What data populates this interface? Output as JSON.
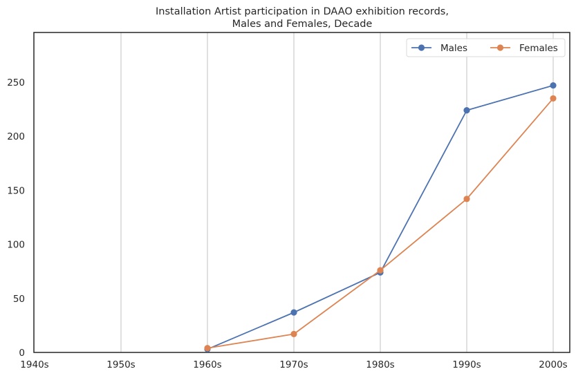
{
  "chart_data": {
    "type": "line",
    "title_lines": [
      "Installation Artist participation in DAAO exhibition records,",
      "Males and Females, Decade"
    ],
    "xlabel": "",
    "ylabel": "",
    "categories": [
      "1940s",
      "1950s",
      "1960s",
      "1970s",
      "1980s",
      "1990s",
      "2000s"
    ],
    "y_ticks": [
      0,
      50,
      100,
      150,
      200,
      250
    ],
    "ylim": [
      0,
      296
    ],
    "grid": "vertical",
    "legend_position": "top-right",
    "series": [
      {
        "name": "Males",
        "color": "#4c72b0",
        "x": [
          "1960s",
          "1970s",
          "1980s",
          "1990s",
          "2000s"
        ],
        "values": [
          3,
          37,
          74,
          224,
          247
        ]
      },
      {
        "name": "Females",
        "color": "#dd8452",
        "x": [
          "1960s",
          "1970s",
          "1980s",
          "1990s",
          "2000s"
        ],
        "values": [
          4,
          17,
          76,
          142,
          235
        ]
      }
    ]
  }
}
